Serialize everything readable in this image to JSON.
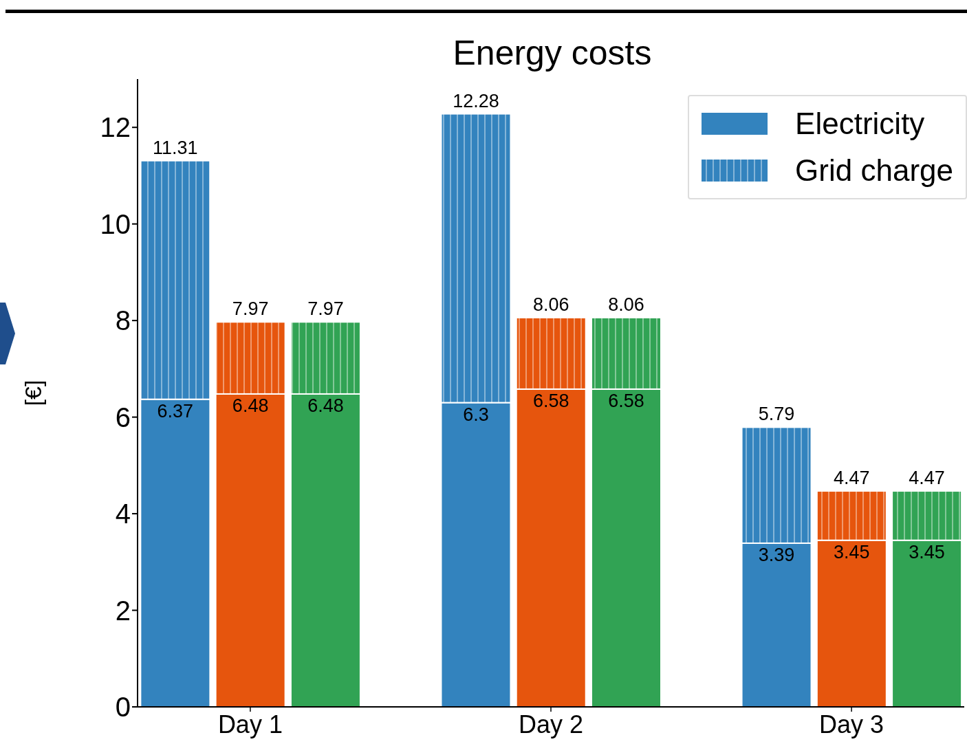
{
  "chart_data": {
    "type": "bar",
    "title": "Energy costs",
    "ylabel": "[€]",
    "stacked": true,
    "categories": [
      null,
      "Day 1",
      null,
      null,
      null,
      "Day 2",
      null,
      null,
      null,
      "Day 3",
      null
    ],
    "series": [
      {
        "name": "Electricity",
        "color": "#3383be",
        "colors": [
          "#3383be",
          "#e6550d",
          "#31a354",
          null,
          "#3383be",
          "#e6550d",
          "#31a354",
          null,
          "#3383be",
          "#e6550d",
          "#31a354"
        ],
        "values": [
          6.37,
          6.48,
          6.48,
          null,
          6.3,
          6.58,
          6.58,
          null,
          3.39,
          3.45,
          3.45
        ],
        "value_labels": [
          "6.37",
          "6.48",
          "6.48",
          null,
          "6.3",
          "6.58",
          "6.58",
          null,
          "3.39",
          "3.45",
          "3.45"
        ]
      },
      {
        "name": "Grid charge",
        "color": "#3383be",
        "colors": [
          "#3383be",
          "#e6550d",
          "#31a354",
          null,
          "#3383be",
          "#e6550d",
          "#31a354",
          null,
          "#3383be",
          "#e6550d",
          "#31a354"
        ],
        "values": [
          4.94,
          1.49,
          1.49,
          null,
          5.98,
          1.48,
          1.48,
          null,
          2.4,
          1.02,
          1.02
        ]
      }
    ],
    "totals": [
      "11.31",
      "7.97",
      "7.97",
      null,
      "12.28",
      "8.06",
      "8.06",
      null,
      "5.79",
      "4.47",
      "4.47"
    ],
    "ylim": [
      0,
      13
    ],
    "yticks": [
      0,
      2,
      4,
      6,
      8,
      10,
      12
    ],
    "grid": false,
    "legend": "top right"
  }
}
